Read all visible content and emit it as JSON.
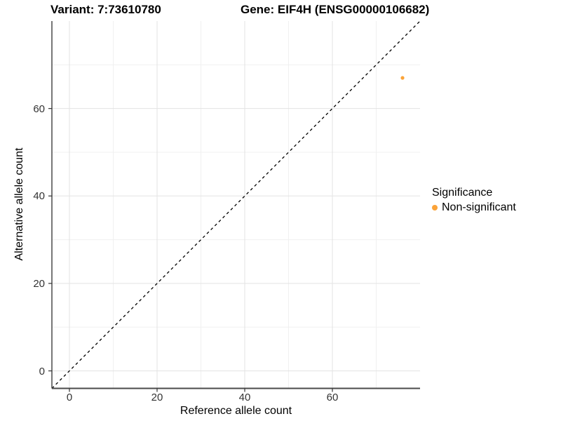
{
  "header": {
    "variant_title": "Variant: 7:73610780",
    "gene_title": "Gene: EIF4H (ENSG00000106682)"
  },
  "chart_data": {
    "type": "scatter",
    "title": "Variant: 7:73610780   Gene: EIF4H (ENSG00000106682)",
    "xlabel": "Reference allele count",
    "ylabel": "Alternative allele count",
    "xlim": [
      -4,
      80
    ],
    "ylim": [
      -4,
      80
    ],
    "x_major_ticks": [
      0,
      20,
      40,
      60
    ],
    "x_minor_ticks": [
      10,
      30,
      50,
      70
    ],
    "y_major_ticks": [
      0,
      20,
      40,
      60
    ],
    "y_minor_ticks": [
      10,
      30,
      50,
      70
    ],
    "grid": true,
    "legend_position": "right",
    "series": [
      {
        "name": "Non-significant",
        "color": "#FBA338",
        "points": [
          {
            "x": 76,
            "y": 67
          }
        ]
      }
    ],
    "reference_line": {
      "type": "identity",
      "style": "dashed",
      "from": [
        -4,
        -4
      ],
      "to": [
        80,
        80
      ],
      "color": "#000000"
    },
    "legend": {
      "title": "Significance",
      "items": [
        {
          "label": "Non-significant",
          "color": "#FBA338"
        }
      ]
    }
  },
  "colors": {
    "point_orange": "#FBA338",
    "grid_major": "#E3E3E3",
    "grid_minor": "#F0F0F0",
    "axis_line": "#4a4a4a",
    "tick_mark": "#333333",
    "background": "#FFFFFF"
  }
}
